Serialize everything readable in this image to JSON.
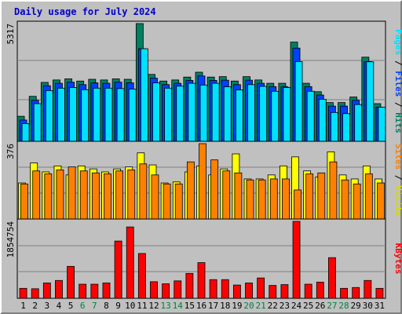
{
  "chart_data": {
    "type": "bar",
    "title": "Daily usage for July 2024",
    "categories": [
      "1",
      "2",
      "3",
      "4",
      "5",
      "6",
      "7",
      "8",
      "9",
      "10",
      "11",
      "12",
      "13",
      "14",
      "15",
      "16",
      "17",
      "18",
      "19",
      "20",
      "21",
      "22",
      "23",
      "24",
      "25",
      "26",
      "27",
      "28",
      "29",
      "30",
      "31"
    ],
    "weekend_days": [
      "6",
      "7",
      "13",
      "14",
      "20",
      "21",
      "27",
      "28"
    ],
    "colors": {
      "hits": "#008060",
      "files": "#0040ff",
      "pages": "#00e0ff",
      "visits": "#ffff00",
      "sites": "#ff8000",
      "kbytes": "#ff0000",
      "weekday_label": "#000000",
      "weekend_label": "#008040",
      "title": "#0000cc",
      "plot_bg": "#c0c0c0"
    },
    "panels": [
      {
        "id": "hits-files-pages",
        "max_label": "5317",
        "ylim": [
          0,
          5317
        ],
        "legend": [
          "Hits",
          "Files",
          "Pages"
        ],
        "series": [
          {
            "name": "Hits",
            "values": [
              1130,
              2030,
              2660,
              2770,
              2820,
              2720,
              2800,
              2770,
              2820,
              2800,
              5317,
              3020,
              2720,
              2770,
              2900,
              3120,
              2900,
              2920,
              2720,
              2920,
              2770,
              2620,
              2620,
              4480,
              2620,
              2240,
              1750,
              1750,
              2000,
              3800,
              1700
            ]
          },
          {
            "name": "Files",
            "values": [
              960,
              1850,
              2510,
              2620,
              2670,
              2560,
              2640,
              2620,
              2670,
              2640,
              4180,
              2850,
              2560,
              2620,
              2750,
              2950,
              2750,
              2760,
              2560,
              2760,
              2620,
              2470,
              2470,
              4210,
              2470,
              2090,
              1590,
              1590,
              1850,
              3600,
              1540
            ]
          },
          {
            "name": "Pages",
            "values": [
              800,
              1700,
              2290,
              2400,
              2430,
              2330,
              2400,
              2400,
              2380,
              2360,
              4180,
              2640,
              2400,
              2490,
              2620,
              2540,
              2620,
              2460,
              2320,
              2560,
              2480,
              2260,
              2430,
              3600,
              2260,
              1900,
              1300,
              1250,
              1660,
              3590,
              1540
            ]
          }
        ]
      },
      {
        "id": "visits-sites",
        "max_label": "376",
        "ylim": [
          0,
          376
        ],
        "legend": [
          "Visits",
          "Sites"
        ],
        "series": [
          {
            "name": "Visits",
            "values": [
              180,
              280,
              235,
              265,
              220,
              265,
              250,
              235,
              250,
              260,
              330,
              270,
              180,
              185,
              235,
              265,
              220,
              250,
              325,
              200,
              200,
              220,
              265,
              310,
              240,
              210,
              335,
              220,
              200,
              265,
              200
            ]
          },
          {
            "name": "Sites",
            "values": [
              175,
              240,
              225,
              245,
              260,
              240,
              230,
              225,
              240,
              245,
              275,
              220,
              175,
              175,
              285,
              376,
              295,
              240,
              230,
              195,
              195,
              200,
              200,
              145,
              225,
              230,
              285,
              195,
              175,
              225,
              180
            ]
          }
        ]
      },
      {
        "id": "kbytes",
        "max_label": "1854754",
        "ylim": [
          0,
          1854754
        ],
        "legend": [
          "KBytes"
        ],
        "series": [
          {
            "name": "KBytes",
            "values": [
              240000,
              230000,
              370000,
              430000,
              770000,
              340000,
              340000,
              370000,
              1380000,
              1720000,
              1080000,
              400000,
              350000,
              420000,
              600000,
              860000,
              450000,
              450000,
              320000,
              370000,
              490000,
              310000,
              330000,
              1854754,
              340000,
              390000,
              980000,
              240000,
              260000,
              430000,
              240000
            ]
          }
        ]
      }
    ]
  }
}
